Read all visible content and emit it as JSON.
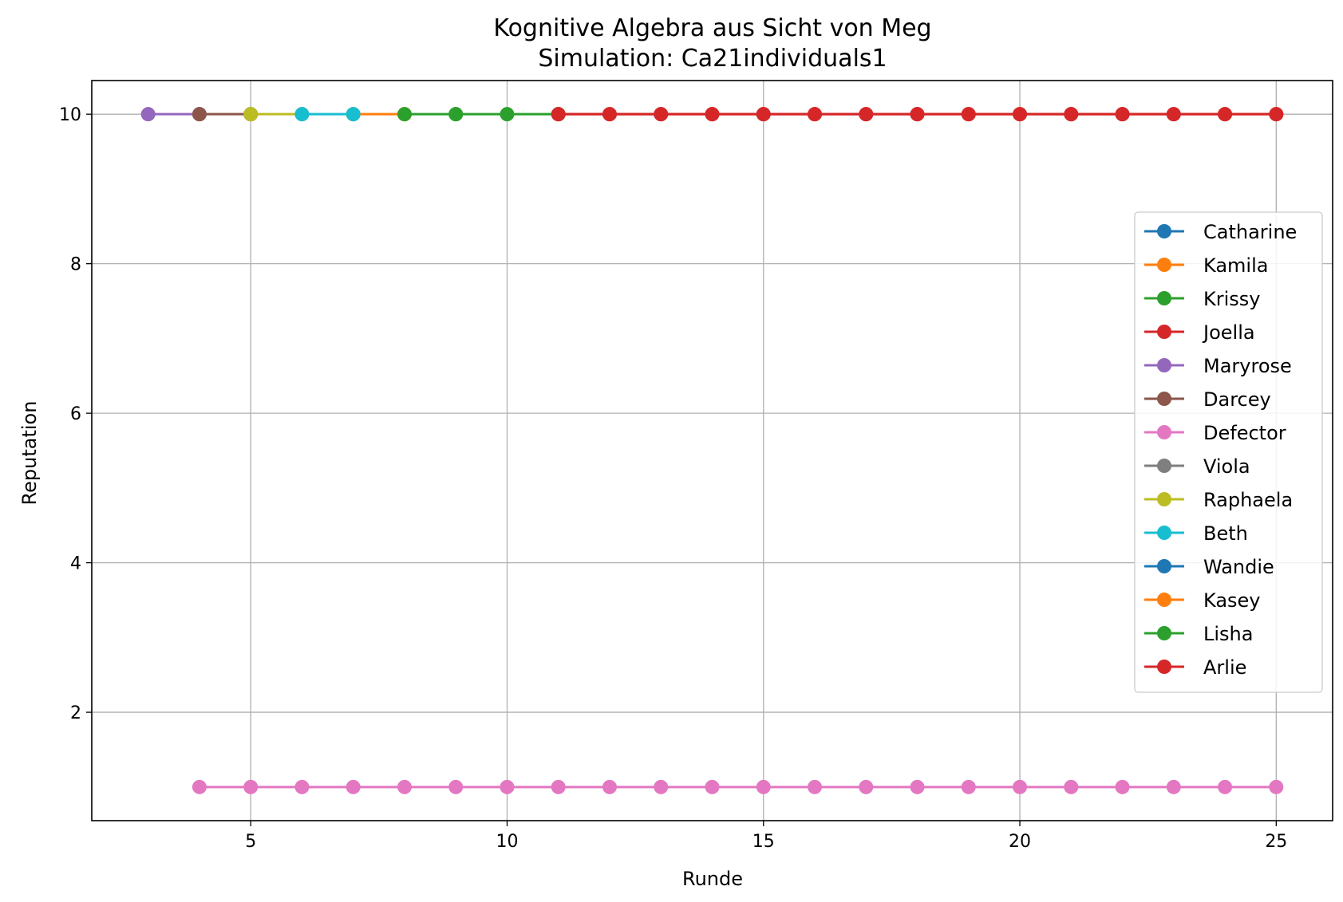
{
  "chart_data": {
    "type": "line",
    "title": "Kognitive Algebra aus Sicht von Meg",
    "subtitle": "Simulation: Ca21individuals1",
    "xlabel": "Runde",
    "ylabel": "Reputation",
    "xlim": [
      1.9,
      26.1
    ],
    "ylim": [
      0.55,
      10.45
    ],
    "xticks": [
      5,
      10,
      15,
      20,
      25
    ],
    "yticks": [
      2,
      4,
      6,
      8,
      10
    ],
    "grid": true,
    "legend_position": "right",
    "series": [
      {
        "name": "Catharine",
        "color": "#1f77b4",
        "x": [],
        "y": []
      },
      {
        "name": "Kamila",
        "color": "#ff7f0e",
        "x": [
          7,
          8
        ],
        "y": [
          10,
          10
        ]
      },
      {
        "name": "Krissy",
        "color": "#2ca02c",
        "x": [
          8,
          9
        ],
        "y": [
          10,
          10
        ]
      },
      {
        "name": "Joella",
        "color": "#d62728",
        "x": [
          11,
          12,
          13,
          14,
          15,
          16,
          17,
          18,
          19,
          20,
          21,
          22,
          23,
          24,
          25
        ],
        "y": [
          10,
          10,
          10,
          10,
          10,
          10,
          10,
          10,
          10,
          10,
          10,
          10,
          10,
          10,
          10
        ]
      },
      {
        "name": "Maryrose",
        "color": "#9467bd",
        "x": [
          3,
          4
        ],
        "y": [
          10,
          10
        ]
      },
      {
        "name": "Darcey",
        "color": "#8c564b",
        "x": [
          4,
          5
        ],
        "y": [
          10,
          10
        ]
      },
      {
        "name": "Defector",
        "color": "#e377c2",
        "x": [
          4,
          5,
          6,
          7,
          8,
          9,
          10,
          11,
          12,
          13,
          14,
          15,
          16,
          17,
          18,
          19,
          20,
          21,
          22,
          23,
          24,
          25
        ],
        "y": [
          1,
          1,
          1,
          1,
          1,
          1,
          1,
          1,
          1,
          1,
          1,
          1,
          1,
          1,
          1,
          1,
          1,
          1,
          1,
          1,
          1,
          1
        ]
      },
      {
        "name": "Viola",
        "color": "#7f7f7f",
        "x": [
          5
        ],
        "y": [
          10
        ]
      },
      {
        "name": "Raphaela",
        "color": "#bcbd22",
        "x": [
          5,
          6
        ],
        "y": [
          10,
          10
        ]
      },
      {
        "name": "Beth",
        "color": "#17becf",
        "x": [
          6,
          7
        ],
        "y": [
          10,
          10
        ]
      },
      {
        "name": "Wandie",
        "color": "#1f77b4",
        "x": [],
        "y": []
      },
      {
        "name": "Kasey",
        "color": "#ff7f0e",
        "x": [],
        "y": []
      },
      {
        "name": "Lisha",
        "color": "#2ca02c",
        "x": [
          9,
          10,
          11
        ],
        "y": [
          10,
          10,
          10
        ]
      },
      {
        "name": "Arlie",
        "color": "#d62728",
        "x": [
          11,
          12,
          13,
          14,
          15,
          16,
          17,
          18,
          19,
          20,
          21,
          22,
          23,
          24,
          25
        ],
        "y": [
          10,
          10,
          10,
          10,
          10,
          10,
          10,
          10,
          10,
          10,
          10,
          10,
          10,
          10,
          10
        ]
      }
    ]
  }
}
